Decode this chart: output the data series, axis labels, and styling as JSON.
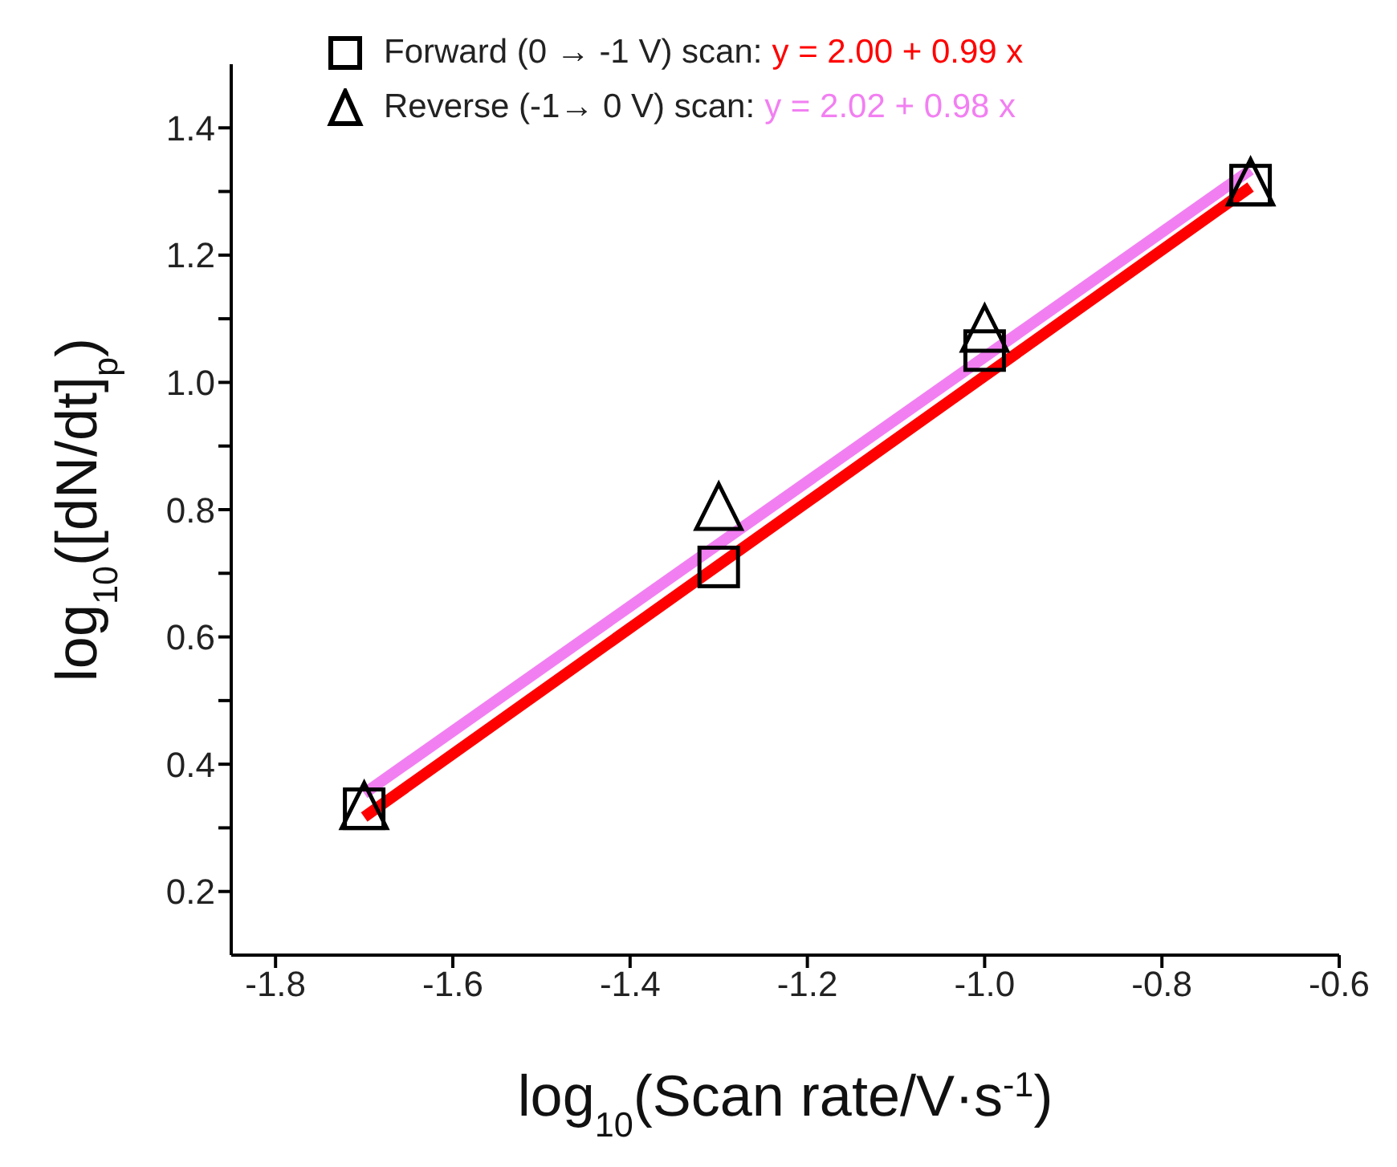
{
  "chart_data": {
    "type": "scatter",
    "xlabel": "log$_{10}$(Scan rate/V·s$^{-1}$)",
    "ylabel": "log$_{10}$([dN/dt]$_{p}$)",
    "xlim": [
      -1.85,
      -0.6
    ],
    "xticks": [
      {
        "value": -1.8,
        "label": "-1.8"
      },
      {
        "value": -1.6,
        "label": "-1.6"
      },
      {
        "value": -1.4,
        "label": "-1.4"
      },
      {
        "value": -1.2,
        "label": "-1.2"
      },
      {
        "value": -1.0,
        "label": "-1.0"
      },
      {
        "value": -0.8,
        "label": "-0.8"
      },
      {
        "value": -0.6,
        "label": "-0.6"
      }
    ],
    "ylim": [
      0.1,
      1.5
    ],
    "yticks": [
      {
        "value": 0.2,
        "label": "0.2"
      },
      {
        "value": 0.3,
        "label": null
      },
      {
        "value": 0.4,
        "label": "0.4"
      },
      {
        "value": 0.5,
        "label": null
      },
      {
        "value": 0.6,
        "label": "0.6"
      },
      {
        "value": 0.7,
        "label": null
      },
      {
        "value": 0.8,
        "label": "0.8"
      },
      {
        "value": 0.9,
        "label": null
      },
      {
        "value": 1.0,
        "label": "1.0"
      },
      {
        "value": 1.1,
        "label": null
      },
      {
        "value": 1.2,
        "label": "1.2"
      },
      {
        "value": 1.3,
        "label": null
      },
      {
        "value": 1.4,
        "label": "1.4"
      }
    ],
    "grid": false,
    "legend": "top",
    "series": [
      {
        "name": "Forward (0 → -1 V) scan:",
        "marker": "square",
        "color": "#000000",
        "x": [
          -1.7,
          -1.3,
          -1.0,
          -0.7
        ],
        "values": [
          0.33,
          0.71,
          1.05,
          1.31
        ]
      },
      {
        "name": "Reverse (-1→ 0 V) scan:",
        "marker": "triangle",
        "color": "#000000",
        "x": [
          -1.7,
          -1.3,
          -1.0,
          -0.7
        ],
        "values": [
          0.33,
          0.8,
          1.08,
          1.31
        ]
      },
      {
        "name": "y = 2.00 + 0.99 x",
        "type": "line",
        "marker": "none",
        "line_style": "solid",
        "color": "#ff0000",
        "x": [
          -1.7,
          -0.7
        ],
        "values": [
          0.317,
          1.307
        ]
      },
      {
        "name": "y = 2.02 + 0.98 x",
        "type": "line",
        "marker": "none",
        "line_style": "solid",
        "color": "#f27ff2",
        "x": [
          -1.7,
          -0.7
        ],
        "values": [
          0.354,
          1.334
        ]
      }
    ]
  }
}
